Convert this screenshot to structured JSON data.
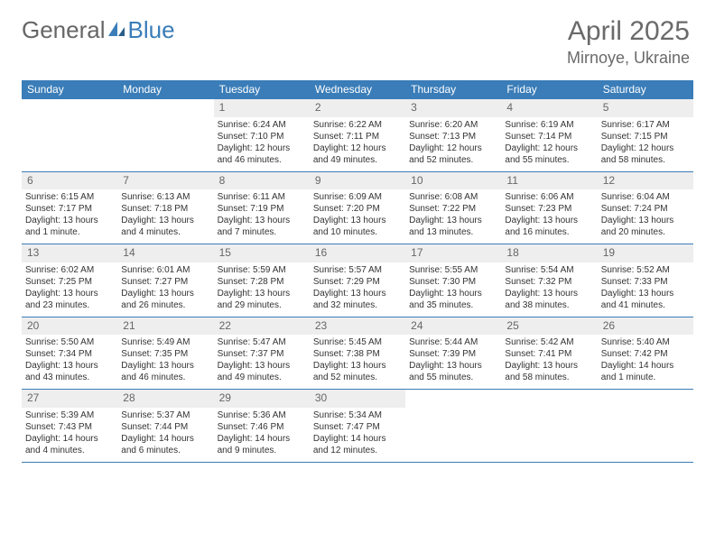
{
  "logo": {
    "text1": "General",
    "text2": "Blue"
  },
  "header": {
    "title": "April 2025",
    "location": "Mirnoye, Ukraine"
  },
  "colors": {
    "brand": "#3a7db8",
    "dayhead_bg": "#3a7db8",
    "daynum_bg": "#eeeeee",
    "text": "#333333",
    "muted": "#6a6a6a"
  },
  "dayNames": [
    "Sunday",
    "Monday",
    "Tuesday",
    "Wednesday",
    "Thursday",
    "Friday",
    "Saturday"
  ],
  "weeks": [
    [
      {
        "n": "",
        "sunrise": "",
        "sunset": "",
        "daylight": ""
      },
      {
        "n": "",
        "sunrise": "",
        "sunset": "",
        "daylight": ""
      },
      {
        "n": "1",
        "sunrise": "Sunrise: 6:24 AM",
        "sunset": "Sunset: 7:10 PM",
        "daylight": "Daylight: 12 hours and 46 minutes."
      },
      {
        "n": "2",
        "sunrise": "Sunrise: 6:22 AM",
        "sunset": "Sunset: 7:11 PM",
        "daylight": "Daylight: 12 hours and 49 minutes."
      },
      {
        "n": "3",
        "sunrise": "Sunrise: 6:20 AM",
        "sunset": "Sunset: 7:13 PM",
        "daylight": "Daylight: 12 hours and 52 minutes."
      },
      {
        "n": "4",
        "sunrise": "Sunrise: 6:19 AM",
        "sunset": "Sunset: 7:14 PM",
        "daylight": "Daylight: 12 hours and 55 minutes."
      },
      {
        "n": "5",
        "sunrise": "Sunrise: 6:17 AM",
        "sunset": "Sunset: 7:15 PM",
        "daylight": "Daylight: 12 hours and 58 minutes."
      }
    ],
    [
      {
        "n": "6",
        "sunrise": "Sunrise: 6:15 AM",
        "sunset": "Sunset: 7:17 PM",
        "daylight": "Daylight: 13 hours and 1 minute."
      },
      {
        "n": "7",
        "sunrise": "Sunrise: 6:13 AM",
        "sunset": "Sunset: 7:18 PM",
        "daylight": "Daylight: 13 hours and 4 minutes."
      },
      {
        "n": "8",
        "sunrise": "Sunrise: 6:11 AM",
        "sunset": "Sunset: 7:19 PM",
        "daylight": "Daylight: 13 hours and 7 minutes."
      },
      {
        "n": "9",
        "sunrise": "Sunrise: 6:09 AM",
        "sunset": "Sunset: 7:20 PM",
        "daylight": "Daylight: 13 hours and 10 minutes."
      },
      {
        "n": "10",
        "sunrise": "Sunrise: 6:08 AM",
        "sunset": "Sunset: 7:22 PM",
        "daylight": "Daylight: 13 hours and 13 minutes."
      },
      {
        "n": "11",
        "sunrise": "Sunrise: 6:06 AM",
        "sunset": "Sunset: 7:23 PM",
        "daylight": "Daylight: 13 hours and 16 minutes."
      },
      {
        "n": "12",
        "sunrise": "Sunrise: 6:04 AM",
        "sunset": "Sunset: 7:24 PM",
        "daylight": "Daylight: 13 hours and 20 minutes."
      }
    ],
    [
      {
        "n": "13",
        "sunrise": "Sunrise: 6:02 AM",
        "sunset": "Sunset: 7:25 PM",
        "daylight": "Daylight: 13 hours and 23 minutes."
      },
      {
        "n": "14",
        "sunrise": "Sunrise: 6:01 AM",
        "sunset": "Sunset: 7:27 PM",
        "daylight": "Daylight: 13 hours and 26 minutes."
      },
      {
        "n": "15",
        "sunrise": "Sunrise: 5:59 AM",
        "sunset": "Sunset: 7:28 PM",
        "daylight": "Daylight: 13 hours and 29 minutes."
      },
      {
        "n": "16",
        "sunrise": "Sunrise: 5:57 AM",
        "sunset": "Sunset: 7:29 PM",
        "daylight": "Daylight: 13 hours and 32 minutes."
      },
      {
        "n": "17",
        "sunrise": "Sunrise: 5:55 AM",
        "sunset": "Sunset: 7:30 PM",
        "daylight": "Daylight: 13 hours and 35 minutes."
      },
      {
        "n": "18",
        "sunrise": "Sunrise: 5:54 AM",
        "sunset": "Sunset: 7:32 PM",
        "daylight": "Daylight: 13 hours and 38 minutes."
      },
      {
        "n": "19",
        "sunrise": "Sunrise: 5:52 AM",
        "sunset": "Sunset: 7:33 PM",
        "daylight": "Daylight: 13 hours and 41 minutes."
      }
    ],
    [
      {
        "n": "20",
        "sunrise": "Sunrise: 5:50 AM",
        "sunset": "Sunset: 7:34 PM",
        "daylight": "Daylight: 13 hours and 43 minutes."
      },
      {
        "n": "21",
        "sunrise": "Sunrise: 5:49 AM",
        "sunset": "Sunset: 7:35 PM",
        "daylight": "Daylight: 13 hours and 46 minutes."
      },
      {
        "n": "22",
        "sunrise": "Sunrise: 5:47 AM",
        "sunset": "Sunset: 7:37 PM",
        "daylight": "Daylight: 13 hours and 49 minutes."
      },
      {
        "n": "23",
        "sunrise": "Sunrise: 5:45 AM",
        "sunset": "Sunset: 7:38 PM",
        "daylight": "Daylight: 13 hours and 52 minutes."
      },
      {
        "n": "24",
        "sunrise": "Sunrise: 5:44 AM",
        "sunset": "Sunset: 7:39 PM",
        "daylight": "Daylight: 13 hours and 55 minutes."
      },
      {
        "n": "25",
        "sunrise": "Sunrise: 5:42 AM",
        "sunset": "Sunset: 7:41 PM",
        "daylight": "Daylight: 13 hours and 58 minutes."
      },
      {
        "n": "26",
        "sunrise": "Sunrise: 5:40 AM",
        "sunset": "Sunset: 7:42 PM",
        "daylight": "Daylight: 14 hours and 1 minute."
      }
    ],
    [
      {
        "n": "27",
        "sunrise": "Sunrise: 5:39 AM",
        "sunset": "Sunset: 7:43 PM",
        "daylight": "Daylight: 14 hours and 4 minutes."
      },
      {
        "n": "28",
        "sunrise": "Sunrise: 5:37 AM",
        "sunset": "Sunset: 7:44 PM",
        "daylight": "Daylight: 14 hours and 6 minutes."
      },
      {
        "n": "29",
        "sunrise": "Sunrise: 5:36 AM",
        "sunset": "Sunset: 7:46 PM",
        "daylight": "Daylight: 14 hours and 9 minutes."
      },
      {
        "n": "30",
        "sunrise": "Sunrise: 5:34 AM",
        "sunset": "Sunset: 7:47 PM",
        "daylight": "Daylight: 14 hours and 12 minutes."
      },
      {
        "n": "",
        "sunrise": "",
        "sunset": "",
        "daylight": ""
      },
      {
        "n": "",
        "sunrise": "",
        "sunset": "",
        "daylight": ""
      },
      {
        "n": "",
        "sunrise": "",
        "sunset": "",
        "daylight": ""
      }
    ]
  ]
}
